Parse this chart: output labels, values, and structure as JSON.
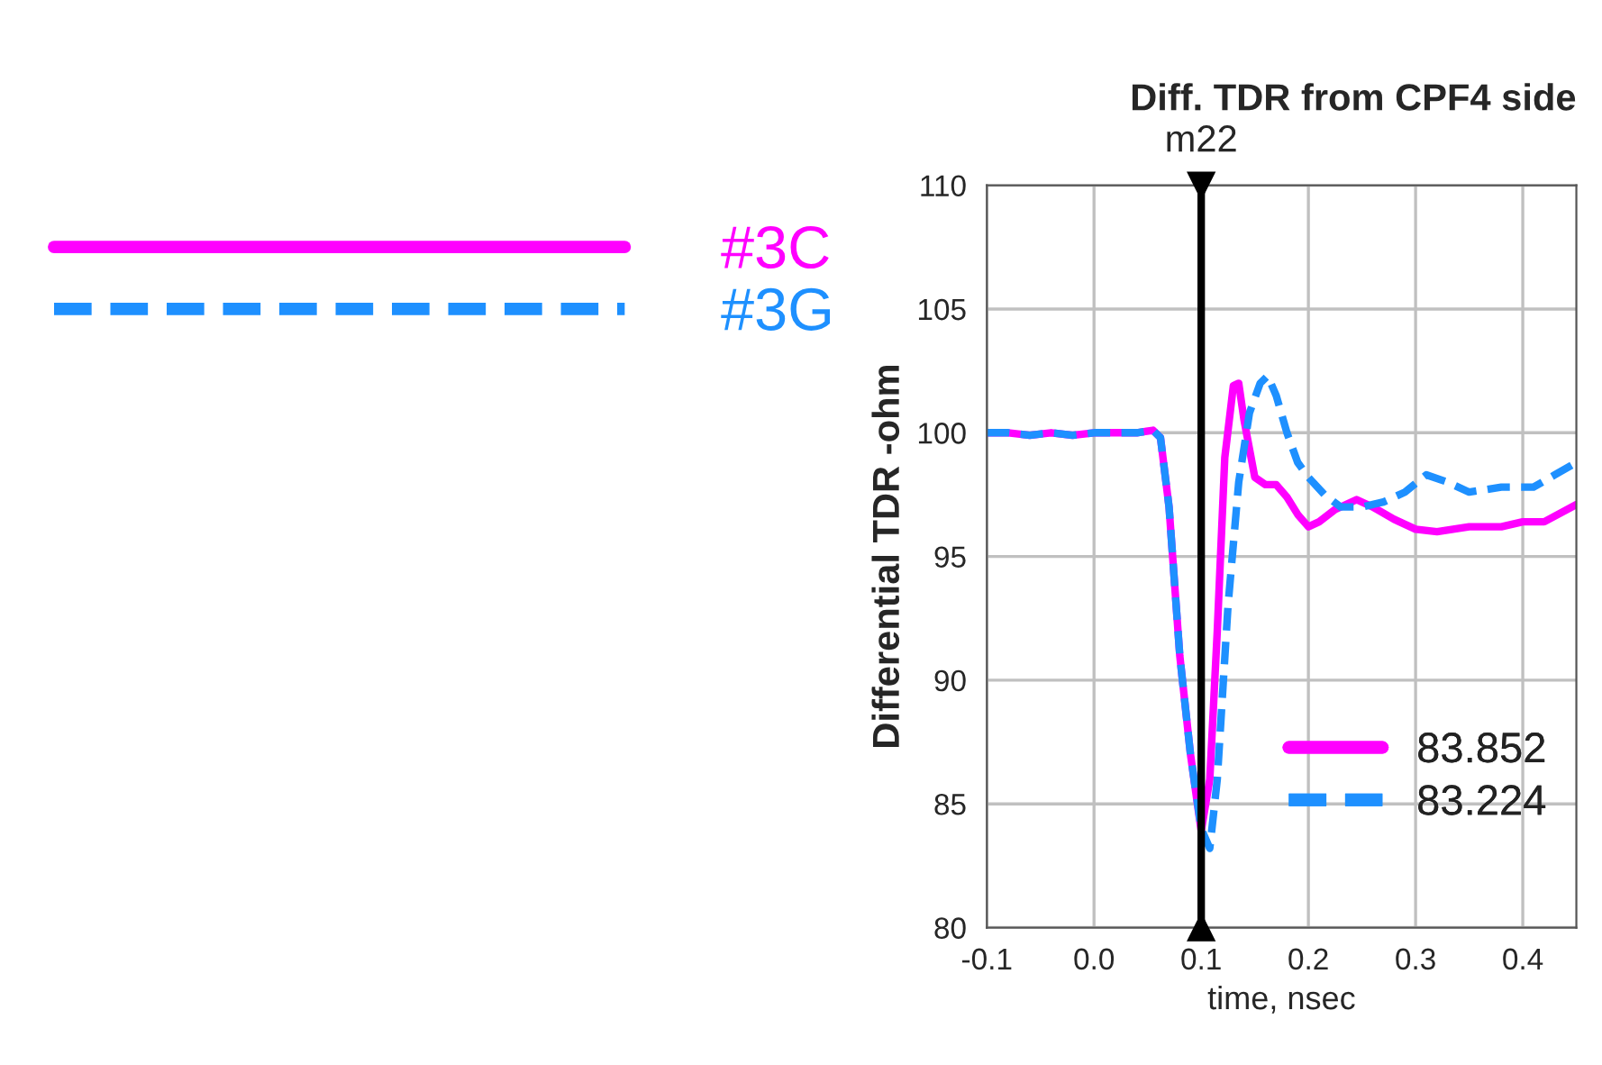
{
  "chart_data": {
    "type": "line",
    "title": "Diff. TDR from CPF4 side",
    "xlabel": "time, nsec",
    "ylabel": "Differential TDR -ohm",
    "xlim": [
      -0.1,
      0.45
    ],
    "xticks": [
      {
        "value": -0.1,
        "label": "-0.1"
      },
      {
        "value": 0.0,
        "label": "0.0"
      },
      0.1,
      0.2,
      0.3,
      0.4
    ],
    "ylim": [
      80,
      110
    ],
    "yticks": [
      80,
      85,
      90,
      95,
      100,
      105,
      110
    ],
    "grid": true,
    "legend": "left",
    "marker": "none",
    "ref_lines": [
      {
        "axis": "x",
        "value": 0.1,
        "label": "m22",
        "color": "#000000"
      }
    ],
    "annotations": [
      "83.852",
      "83.224"
    ],
    "series": [
      {
        "name": "#3C",
        "color": "#ff00ff",
        "line_style": "solid",
        "x": [
          -0.1,
          -0.08,
          -0.06,
          -0.04,
          -0.02,
          0.0,
          0.02,
          0.04,
          0.055,
          0.062,
          0.07,
          0.08,
          0.09,
          0.1,
          0.108,
          0.115,
          0.122,
          0.13,
          0.135,
          0.14,
          0.15,
          0.16,
          0.17,
          0.18,
          0.19,
          0.2,
          0.21,
          0.225,
          0.245,
          0.26,
          0.28,
          0.3,
          0.32,
          0.35,
          0.38,
          0.4,
          0.42,
          0.45
        ],
        "values": [
          100.0,
          100.0,
          99.9,
          100.0,
          99.9,
          100.0,
          100.0,
          100.0,
          100.1,
          99.8,
          97,
          91,
          87,
          83.9,
          86,
          92,
          99,
          101.9,
          102.0,
          100.5,
          98.2,
          97.9,
          97.9,
          97.4,
          96.7,
          96.2,
          96.4,
          96.9,
          97.3,
          97.0,
          96.5,
          96.1,
          96.0,
          96.2,
          96.2,
          96.4,
          96.4,
          97.1
        ]
      },
      {
        "name": "#3G",
        "color": "#1e90ff",
        "line_style": "dashed",
        "x": [
          -0.1,
          -0.08,
          -0.06,
          -0.04,
          -0.02,
          0.0,
          0.02,
          0.04,
          0.055,
          0.062,
          0.07,
          0.08,
          0.09,
          0.1,
          0.108,
          0.115,
          0.125,
          0.135,
          0.145,
          0.155,
          0.162,
          0.17,
          0.18,
          0.19,
          0.2,
          0.215,
          0.23,
          0.25,
          0.27,
          0.29,
          0.31,
          0.33,
          0.35,
          0.38,
          0.41,
          0.43,
          0.45
        ],
        "values": [
          100.0,
          100.0,
          99.9,
          100.0,
          99.9,
          100.0,
          100.0,
          100.0,
          100.1,
          99.8,
          97,
          91,
          87,
          84,
          83.2,
          86,
          93,
          98,
          100.8,
          102.0,
          102.3,
          101.5,
          100.0,
          98.8,
          98.2,
          97.5,
          97.0,
          97.0,
          97.2,
          97.6,
          98.3,
          98.0,
          97.6,
          97.8,
          97.8,
          98.3,
          98.8
        ]
      }
    ]
  }
}
